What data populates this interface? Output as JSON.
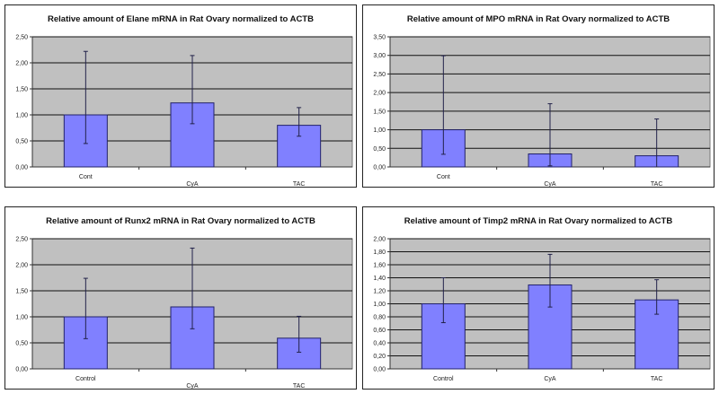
{
  "colors": {
    "bar": "#8080ff",
    "bar_border": "#22226a",
    "plot_bg": "#c0c0c0",
    "grid": "#111111",
    "error_bar": "#22224a"
  },
  "chart_data": [
    {
      "type": "bar",
      "title": "Relative amount of Elane mRNA in Rat Ovary normalized to ACTB",
      "categories": [
        "Cont",
        "CyA",
        "TAC"
      ],
      "staggered_labels": true,
      "values": [
        1.0,
        1.23,
        0.8
      ],
      "error_low": [
        0.45,
        0.83,
        0.59
      ],
      "error_high": [
        2.22,
        2.14,
        1.14
      ],
      "ylim": [
        0,
        2.5
      ],
      "yticks": [
        "0,00",
        "0,50",
        "1,00",
        "1,50",
        "2,00",
        "2,50"
      ],
      "grid": true
    },
    {
      "type": "bar",
      "title": "Relative amount of MPO mRNA in Rat Ovary normalized to ACTB",
      "categories": [
        "Cont",
        "CyA",
        "TAC"
      ],
      "staggered_labels": true,
      "values": [
        1.0,
        0.35,
        0.3
      ],
      "error_low": [
        0.34,
        0.03,
        0.0
      ],
      "error_high": [
        2.99,
        1.7,
        1.29
      ],
      "ylim": [
        0,
        3.5
      ],
      "yticks": [
        "0,00",
        "0,50",
        "1,00",
        "1,50",
        "2,00",
        "2,50",
        "3,00",
        "3,50"
      ],
      "grid": true
    },
    {
      "type": "bar",
      "title": "Relative amount of Runx2 mRNA in Rat Ovary normalized to ACTB",
      "categories": [
        "Control",
        "CyA",
        "TAC"
      ],
      "staggered_labels": true,
      "values": [
        1.0,
        1.19,
        0.59
      ],
      "error_low": [
        0.58,
        0.77,
        0.32
      ],
      "error_high": [
        1.74,
        2.32,
        1.01
      ],
      "ylim": [
        0,
        2.5
      ],
      "yticks": [
        "0,00",
        "0,50",
        "1,00",
        "1,50",
        "2,00",
        "2,50"
      ],
      "grid": true
    },
    {
      "type": "bar",
      "title": "Relative amount of Timp2 mRNA in Rat Ovary normalized to ACTB",
      "categories": [
        "Control",
        "CyA",
        "TAC"
      ],
      "staggered_labels": false,
      "values": [
        1.0,
        1.29,
        1.06
      ],
      "error_low": [
        0.71,
        0.95,
        0.84
      ],
      "error_high": [
        1.4,
        1.76,
        1.37
      ],
      "ylim": [
        0,
        2.0
      ],
      "yticks": [
        "0,00",
        "0,20",
        "0,40",
        "0,60",
        "0,80",
        "1,00",
        "1,20",
        "1,40",
        "1,60",
        "1,80",
        "2,00"
      ],
      "grid": true
    }
  ]
}
